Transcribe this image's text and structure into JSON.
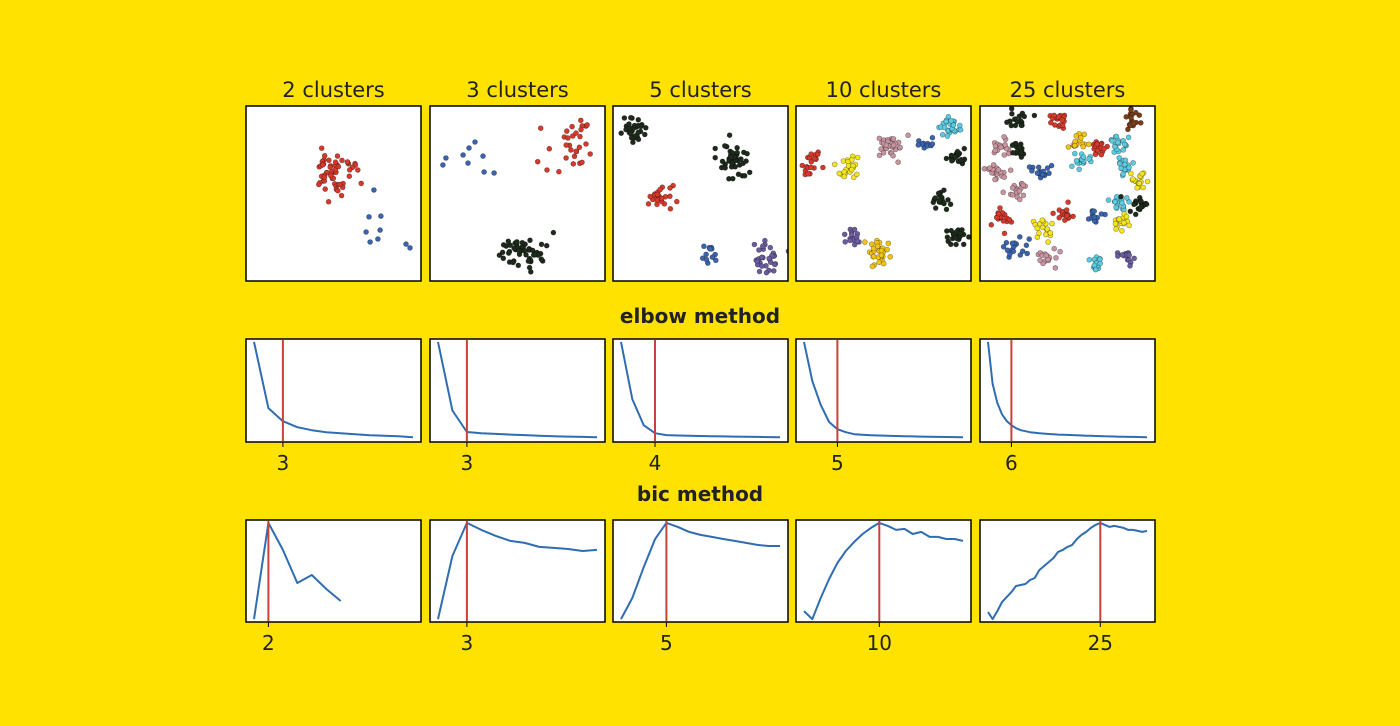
{
  "colors": {
    "background": "#FFE200",
    "axes_face": "#FFFFFF",
    "axes_edge": "#000000",
    "curve": "#2F6DB3",
    "selected_k_line": "#C8423B"
  },
  "chart_data": {
    "scatter": [
      {
        "type": "scatter",
        "title": "2 clusters",
        "xlim": [
          0,
          10
        ],
        "ylim": [
          0,
          10
        ],
        "clusters": [
          {
            "color": "#D43A2C",
            "center": [
              4.97,
              6.23
            ],
            "sd": [
              0.6,
              0.65
            ],
            "n": 55
          },
          {
            "color": "#3A64AE",
            "points": [
              [
                7.31,
                5.2
              ],
              [
                7.03,
                3.66
              ],
              [
                7.71,
                3.71
              ],
              [
                7.66,
                2.91
              ],
              [
                6.86,
                2.8
              ],
              [
                7.54,
                2.4
              ],
              [
                7.09,
                2.23
              ],
              [
                9.14,
                2.11
              ],
              [
                9.37,
                1.89
              ]
            ]
          }
        ]
      },
      {
        "type": "scatter",
        "title": "3 clusters",
        "xlim": [
          0,
          10
        ],
        "ylim": [
          0,
          10
        ],
        "clusters": [
          {
            "color": "#3A64AE",
            "points": [
              [
                2.57,
                7.94
              ],
              [
                2.23,
                7.6
              ],
              [
                1.89,
                7.2
              ],
              [
                0.91,
                7.03
              ],
              [
                0.74,
                6.63
              ],
              [
                3.03,
                7.14
              ],
              [
                2.17,
                6.74
              ],
              [
                3.09,
                6.23
              ],
              [
                3.66,
                6.17
              ]
            ]
          },
          {
            "color": "#D43A2C",
            "center": [
              8.0,
              7.94
            ],
            "sd": [
              0.7,
              0.7
            ],
            "n": 30
          },
          {
            "color": "#1E2A1C",
            "center": [
              5.26,
              1.71
            ],
            "sd": [
              0.65,
              0.5
            ],
            "n": 50
          }
        ]
      },
      {
        "type": "scatter",
        "title": "5 clusters",
        "xlim": [
          0,
          10
        ],
        "ylim": [
          0,
          10
        ],
        "clusters": [
          {
            "color": "#1E2A1C",
            "center": [
              1.26,
              8.69
            ],
            "sd": 0.35,
            "n": 30
          },
          {
            "color": "#1E2A1C",
            "center": [
              6.86,
              6.97
            ],
            "sd": 0.45,
            "n": 45
          },
          {
            "color": "#D43A2C",
            "center": [
              2.69,
              4.8
            ],
            "sd": 0.38,
            "n": 25
          },
          {
            "color": "#3A64AE",
            "center": [
              5.6,
              1.54
            ],
            "sd": 0.3,
            "n": 12
          },
          {
            "color": "#6B5C9E",
            "center": [
              8.74,
              1.31
            ],
            "sd": 0.4,
            "n": 30
          }
        ]
      },
      {
        "type": "scatter",
        "title": "10 clusters",
        "xlim": [
          0,
          10
        ],
        "ylim": [
          0,
          10
        ],
        "clusters": [
          {
            "color": "#D43A2C",
            "center": [
              0.91,
              6.74
            ],
            "sd": [
              0.25,
              0.4
            ],
            "n": 20
          },
          {
            "color": "#F4E51E",
            "center": [
              3.03,
              6.51
            ],
            "sd": 0.35,
            "n": 25
          },
          {
            "color": "#C8949F",
            "center": [
              5.37,
              7.83
            ],
            "sd": 0.35,
            "n": 35
          },
          {
            "color": "#3A64AE",
            "center": [
              7.31,
              7.77
            ],
            "sd": [
              0.25,
              0.15
            ],
            "n": 10
          },
          {
            "color": "#5CCBE0",
            "center": [
              8.91,
              8.74
            ],
            "sd": [
              0.35,
              0.3
            ],
            "n": 30
          },
          {
            "color": "#1E2A1C",
            "center": [
              9.09,
              7.03
            ],
            "sd": 0.25,
            "n": 20
          },
          {
            "color": "#1E2A1C",
            "center": [
              8.29,
              4.57
            ],
            "sd": 0.25,
            "n": 20
          },
          {
            "color": "#6B5C9E",
            "center": [
              3.2,
              2.51
            ],
            "sd": 0.25,
            "n": 15
          },
          {
            "color": "#F3C414",
            "center": [
              4.57,
              1.6
            ],
            "sd": 0.38,
            "n": 30
          },
          {
            "color": "#1E2A1C",
            "center": [
              9.09,
              2.46
            ],
            "sd": 0.3,
            "n": 25
          }
        ]
      },
      {
        "type": "scatter",
        "title": "25 clusters",
        "xlim": [
          0,
          10
        ],
        "ylim": [
          0,
          10
        ],
        "clusters": [
          {
            "color": "#1E2A1C",
            "center": [
              2.11,
              9.09
            ],
            "sd": 0.28,
            "n": 18
          },
          {
            "color": "#D43A2C",
            "center": [
              4.51,
              9.26
            ],
            "sd": 0.28,
            "n": 18
          },
          {
            "color": "#7A3D1C",
            "center": [
              8.69,
              9.14
            ],
            "sd": 0.28,
            "n": 18
          },
          {
            "color": "#C8949F",
            "center": [
              1.26,
              7.6
            ],
            "sd": 0.28,
            "n": 18
          },
          {
            "color": "#1E2A1C",
            "center": [
              2.34,
              7.54
            ],
            "sd": 0.25,
            "n": 14
          },
          {
            "color": "#F3C414",
            "center": [
              5.66,
              7.89
            ],
            "sd": 0.28,
            "n": 18
          },
          {
            "color": "#D43A2C",
            "center": [
              6.74,
              7.6
            ],
            "sd": 0.28,
            "n": 18
          },
          {
            "color": "#5CCBE0",
            "center": [
              5.77,
              6.91
            ],
            "sd": 0.28,
            "n": 18
          },
          {
            "color": "#5CCBE0",
            "center": [
              7.89,
              8.06
            ],
            "sd": 0.28,
            "n": 18
          },
          {
            "color": "#3A64AE",
            "center": [
              3.49,
              6.23
            ],
            "sd": 0.28,
            "n": 18
          },
          {
            "color": "#C8949F",
            "center": [
              1.14,
              6.23
            ],
            "sd": 0.28,
            "n": 18
          },
          {
            "color": "#5CCBE0",
            "center": [
              8.29,
              6.57
            ],
            "sd": 0.28,
            "n": 18
          },
          {
            "color": "#F4E51E",
            "center": [
              9.03,
              5.83
            ],
            "sd": 0.28,
            "n": 18
          },
          {
            "color": "#C8949F",
            "center": [
              2.23,
              5.14
            ],
            "sd": 0.28,
            "n": 18
          },
          {
            "color": "#5CCBE0",
            "center": [
              7.94,
              4.46
            ],
            "sd": 0.28,
            "n": 18
          },
          {
            "color": "#1E2A1C",
            "center": [
              8.97,
              4.4
            ],
            "sd": 0.28,
            "n": 18
          },
          {
            "color": "#3A64AE",
            "center": [
              6.63,
              3.71
            ],
            "sd": 0.25,
            "n": 14
          },
          {
            "color": "#F4E51E",
            "center": [
              8.11,
              3.37
            ],
            "sd": 0.28,
            "n": 18
          },
          {
            "color": "#D43A2C",
            "center": [
              1.31,
              3.54
            ],
            "sd": 0.28,
            "n": 18
          },
          {
            "color": "#D43A2C",
            "center": [
              4.86,
              3.77
            ],
            "sd": 0.28,
            "n": 18
          },
          {
            "color": "#F4E51E",
            "center": [
              3.6,
              2.97
            ],
            "sd": 0.28,
            "n": 18
          },
          {
            "color": "#3A64AE",
            "center": [
              2.06,
              2.0
            ],
            "sd": 0.28,
            "n": 18
          },
          {
            "color": "#C8949F",
            "center": [
              4.0,
              1.43
            ],
            "sd": 0.28,
            "n": 18
          },
          {
            "color": "#5CCBE0",
            "center": [
              6.69,
              1.09
            ],
            "sd": 0.28,
            "n": 18
          },
          {
            "color": "#6B5C9E",
            "center": [
              8.4,
              1.31
            ],
            "sd": 0.25,
            "n": 14
          }
        ]
      }
    ],
    "elbow": {
      "heading": "elbow method",
      "charts": [
        {
          "type": "line",
          "selected_k": 3,
          "xlim": [
            0.45,
            12.55
          ],
          "ylim": [
            -5,
            103
          ],
          "x": [
            1,
            2,
            3,
            4,
            5,
            6,
            7,
            8,
            9,
            10,
            11,
            12
          ],
          "y": [
            100,
            30.5,
            16.8,
            10.5,
            7.4,
            5.3,
            4.2,
            3.2,
            2.1,
            1.6,
            1.1,
            0
          ]
        },
        {
          "type": "line",
          "selected_k": 3,
          "xlim": [
            0.45,
            12.55
          ],
          "ylim": [
            -5,
            103
          ],
          "x": [
            1,
            2,
            3,
            4,
            5,
            6,
            7,
            8,
            9,
            10,
            11,
            12
          ],
          "y": [
            100,
            28,
            5.5,
            4.2,
            3.5,
            2.8,
            2.2,
            1.6,
            1.1,
            0.7,
            0.3,
            0
          ]
        },
        {
          "type": "line",
          "selected_k": 4,
          "xlim": [
            0.3,
            15.7
          ],
          "ylim": [
            -5,
            103
          ],
          "x": [
            1,
            2,
            3,
            4,
            5,
            6,
            7,
            8,
            9,
            10,
            11,
            12,
            13,
            14,
            15
          ],
          "y": [
            100,
            40,
            12.6,
            4.2,
            2.2,
            1.8,
            1.5,
            1.3,
            1.1,
            0.9,
            0.7,
            0.5,
            0.3,
            0.1,
            0
          ]
        },
        {
          "type": "line",
          "selected_k": 5,
          "xlim": [
            0.05,
            20.95
          ],
          "ylim": [
            -5,
            103
          ],
          "x": [
            1,
            2,
            3,
            4,
            5,
            6,
            7,
            8,
            9,
            10,
            11,
            12,
            13,
            14,
            15,
            16,
            17,
            18,
            19,
            20
          ],
          "y": [
            100,
            59,
            34,
            16,
            8.4,
            5.3,
            3.2,
            2.6,
            2.1,
            1.8,
            1.5,
            1.3,
            1.1,
            0.9,
            0.7,
            0.5,
            0.4,
            0.2,
            0.1,
            0
          ]
        },
        {
          "type": "line",
          "selected_k": 6,
          "xlim": [
            -0.7,
            36.7
          ],
          "ylim": [
            -5,
            103
          ],
          "x": [
            1,
            2,
            3,
            4,
            5,
            6,
            7,
            8,
            9,
            10,
            11,
            12,
            13,
            14,
            15,
            16,
            17,
            18,
            19,
            20,
            21,
            22,
            23,
            24,
            25,
            26,
            27,
            28,
            29,
            30,
            31,
            32,
            33,
            34,
            35
          ],
          "y": [
            100,
            56,
            36,
            24,
            17,
            12.6,
            9.5,
            7.4,
            6.3,
            5.3,
            4.7,
            4.2,
            3.8,
            3.4,
            3.1,
            2.8,
            2.6,
            2.4,
            2.2,
            2.0,
            1.8,
            1.6,
            1.5,
            1.3,
            1.2,
            1.0,
            0.9,
            0.8,
            0.6,
            0.5,
            0.4,
            0.3,
            0.2,
            0.1,
            0
          ]
        }
      ]
    },
    "bic": {
      "heading": "bic method",
      "charts": [
        {
          "type": "line",
          "selected_k": 2,
          "xlim": [
            0.45,
            12.55
          ],
          "ylim": [
            -3,
            103
          ],
          "x": [
            1,
            2,
            3,
            4,
            5,
            6,
            7
          ],
          "y": [
            0,
            100,
            71.9,
            37.5,
            45.8,
            31.3,
            18.8
          ]
        },
        {
          "type": "line",
          "selected_k": 3,
          "xlim": [
            0.45,
            12.55
          ],
          "ylim": [
            -3,
            103
          ],
          "x": [
            1,
            2,
            3,
            4,
            5,
            6,
            7,
            8,
            9,
            10,
            11,
            12
          ],
          "y": [
            0,
            65.6,
            100,
            92.7,
            86.5,
            81.3,
            79.2,
            75,
            74,
            72.9,
            70.8,
            71.9
          ]
        },
        {
          "type": "line",
          "selected_k": 5,
          "xlim": [
            0.3,
            15.7
          ],
          "ylim": [
            -3,
            103
          ],
          "x": [
            1,
            2,
            3,
            4,
            5,
            6,
            7,
            8,
            9,
            10,
            11,
            12,
            13,
            14,
            15
          ],
          "y": [
            0,
            21.9,
            54,
            83,
            100,
            95.8,
            90.6,
            87.5,
            85.4,
            83.3,
            81.3,
            79.2,
            77.1,
            76,
            76
          ]
        },
        {
          "type": "line",
          "selected_k": 10,
          "xlim": [
            0.05,
            20.95
          ],
          "ylim": [
            -3,
            103
          ],
          "x": [
            1,
            2,
            3,
            4,
            5,
            6,
            7,
            8,
            9,
            10,
            11,
            12,
            13,
            14,
            15,
            16,
            17,
            18,
            19,
            20
          ],
          "y": [
            8.3,
            0,
            21.9,
            41.7,
            58.3,
            70.8,
            80.2,
            88.5,
            94.8,
            100,
            96.9,
            92.7,
            93.8,
            88.5,
            90.6,
            85.4,
            85.4,
            83.3,
            83.3,
            81.3
          ]
        },
        {
          "type": "line",
          "selected_k": 25,
          "xlim": [
            -0.7,
            36.7
          ],
          "ylim": [
            -3,
            103
          ],
          "x": [
            1,
            2,
            3,
            4,
            5,
            6,
            7,
            8,
            9,
            10,
            11,
            12,
            13,
            14,
            15,
            16,
            17,
            18,
            19,
            20,
            21,
            22,
            23,
            24,
            25,
            26,
            27,
            28,
            29,
            30,
            31,
            32,
            33,
            34,
            35
          ],
          "y": [
            7.3,
            0,
            8.3,
            17.7,
            22.9,
            28.1,
            34.4,
            35.4,
            36.5,
            40.6,
            42.7,
            51,
            55.2,
            59.4,
            63.5,
            69.8,
            71.9,
            75,
            77.1,
            83.3,
            87.5,
            90.6,
            94.8,
            97.9,
            100,
            97.9,
            95.8,
            96.9,
            95.8,
            94.8,
            92.7,
            92.7,
            91.7,
            90.6,
            91.7
          ]
        }
      ]
    }
  }
}
